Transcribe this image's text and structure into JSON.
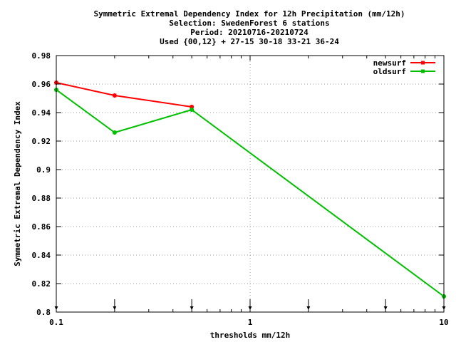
{
  "chart_data": {
    "type": "line",
    "title_lines": [
      "Symmetric Extremal Dependency Index  for 12h Precipitation (mm/12h)",
      "Selection: SwedenForest      6 stations",
      "Period: 20210716-20210724",
      "Used {00,12} + 27-15 30-18 33-21 36-24"
    ],
    "xlabel": "thresholds mm/12h",
    "ylabel": "Symmetric Extremal Dependency Index",
    "xscale": "log",
    "xlim": [
      0.1,
      10
    ],
    "ylim": [
      0.8,
      0.98
    ],
    "x_ticks": [
      0.1,
      1,
      10
    ],
    "x_tick_labels": [
      "0.1",
      "1",
      "10"
    ],
    "y_ticks": [
      0.8,
      0.82,
      0.84,
      0.86,
      0.88,
      0.9,
      0.92,
      0.94,
      0.96,
      0.98
    ],
    "y_tick_labels": [
      "0.8",
      "0.82",
      "0.84",
      "0.86",
      "0.88",
      "0.9",
      "0.92",
      "0.94",
      "0.96",
      "0.98"
    ],
    "grid": true,
    "legend_position": "top-right",
    "threshold_arrows": [
      0.1,
      0.2,
      0.5,
      1,
      2,
      5,
      10
    ],
    "series": [
      {
        "name": "newsurf",
        "color": "#ff0000",
        "x": [
          0.1,
          0.2,
          0.5
        ],
        "y": [
          0.961,
          0.952,
          0.944
        ]
      },
      {
        "name": "oldsurf",
        "color": "#00c000",
        "x": [
          0.1,
          0.2,
          0.5,
          10
        ],
        "y": [
          0.956,
          0.926,
          0.942,
          0.811
        ]
      }
    ]
  }
}
